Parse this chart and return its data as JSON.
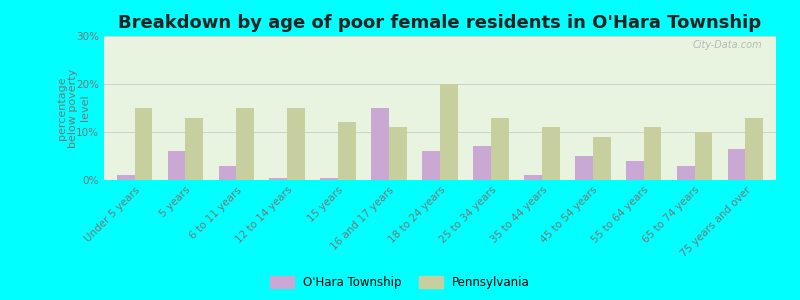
{
  "title": "Breakdown by age of poor female residents in O'Hara Township",
  "ylabel": "percentage\nbelow poverty\nlevel",
  "categories": [
    "Under 5 years",
    "5 years",
    "6 to 11 years",
    "12 to 14 years",
    "15 years",
    "16 and 17 years",
    "18 to 24 years",
    "25 to 34 years",
    "35 to 44 years",
    "45 to 54 years",
    "55 to 64 years",
    "65 to 74 years",
    "75 years and over"
  ],
  "ohara_values": [
    1.0,
    6.0,
    3.0,
    0.5,
    0.5,
    15.0,
    6.0,
    7.0,
    1.0,
    5.0,
    4.0,
    3.0,
    6.5
  ],
  "pa_values": [
    15.0,
    13.0,
    15.0,
    15.0,
    12.0,
    11.0,
    20.0,
    13.0,
    11.0,
    9.0,
    11.0,
    10.0,
    13.0
  ],
  "ohara_color": "#c9a8d4",
  "pa_color": "#c8cf9e",
  "plot_bg": "#e8f4e0",
  "outer_bg": "#00ffff",
  "ylim": [
    0,
    30
  ],
  "yticks": [
    0,
    10,
    20,
    30
  ],
  "ytick_labels": [
    "0%",
    "10%",
    "20%",
    "30%"
  ],
  "legend_ohara": "O'Hara Township",
  "legend_pa": "Pennsylvania",
  "bar_width": 0.35,
  "title_fontsize": 13,
  "label_fontsize": 8,
  "tick_fontsize": 7.5,
  "watermark": "City-Data.com"
}
